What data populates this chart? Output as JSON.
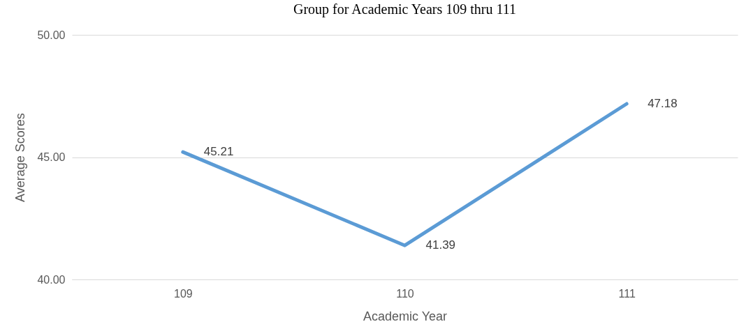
{
  "chart_data": {
    "type": "line",
    "title": "Group for Academic Years 109 thru 111",
    "xlabel": "Academic Year",
    "ylabel": "Average Scores",
    "categories": [
      "109",
      "110",
      "111"
    ],
    "series": [
      {
        "color": "#5b9bd5",
        "values": [
          45.21,
          41.39,
          47.18
        ]
      }
    ],
    "ylim": [
      40,
      50
    ],
    "yticks": [
      {
        "value": 40,
        "label": "40.00"
      },
      {
        "value": 45,
        "label": "45.00"
      },
      {
        "value": 50,
        "label": "50.00"
      }
    ],
    "grid": "y",
    "data_labels": true,
    "marker": "none",
    "line_style": "solid",
    "legend": false
  }
}
